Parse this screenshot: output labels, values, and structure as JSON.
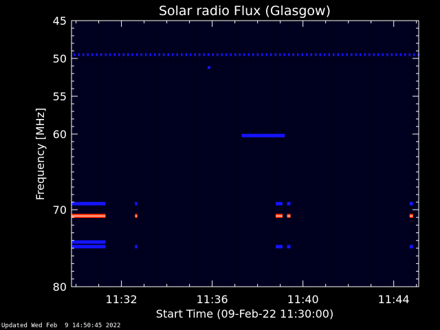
{
  "chart_data": {
    "type": "heatmap",
    "title": "Solar radio Flux (Glasgow)",
    "xlabel": "Start Time (09-Feb-22 11:30:00)",
    "ylabel": "Frequency [MHz]",
    "x_tick_labels": [
      "11:32",
      "11:36",
      "11:40",
      "11:44"
    ],
    "x_tick_minutes": [
      2,
      6,
      10,
      14
    ],
    "xlim_minutes": [
      -0.2,
      15.1
    ],
    "y_tick_labels": [
      "45",
      "50",
      "55",
      "60",
      "70",
      "80"
    ],
    "y_tick_values": [
      45,
      50,
      55,
      60,
      70,
      80
    ],
    "ylim": [
      45,
      80
    ],
    "y_scale": "nonlinear (log-like)",
    "colors": {
      "background": "#000000",
      "plot_background": "#00001c",
      "low": "#1414ff",
      "high": "#ff3000",
      "peak": "#ffd0c0",
      "axis": "#ffffff"
    },
    "features": [
      {
        "freq_mhz": 49.5,
        "x_start": -0.2,
        "x_end": 15.1,
        "intensity": "low",
        "pattern": "dashed"
      },
      {
        "freq_mhz": 51.2,
        "x_start": 5.8,
        "x_end": 5.9,
        "intensity": "low",
        "pattern": "dot"
      },
      {
        "freq_mhz": 60.2,
        "x_start": 7.3,
        "x_end": 9.2,
        "intensity": "low",
        "pattern": "solid"
      },
      {
        "freq_mhz": 69.2,
        "x_start": -0.2,
        "x_end": 1.3,
        "intensity": "low",
        "pattern": "solid"
      },
      {
        "freq_mhz": 69.2,
        "x_start": 2.6,
        "x_end": 2.7,
        "intensity": "low",
        "pattern": "solid"
      },
      {
        "freq_mhz": 69.2,
        "x_start": 8.8,
        "x_end": 9.1,
        "intensity": "low",
        "pattern": "solid"
      },
      {
        "freq_mhz": 69.2,
        "x_start": 9.3,
        "x_end": 9.45,
        "intensity": "low",
        "pattern": "solid"
      },
      {
        "freq_mhz": 69.2,
        "x_start": 14.7,
        "x_end": 14.85,
        "intensity": "low",
        "pattern": "solid"
      },
      {
        "freq_mhz": 70.8,
        "x_start": -0.2,
        "x_end": 1.3,
        "intensity": "high",
        "pattern": "solid"
      },
      {
        "freq_mhz": 70.8,
        "x_start": 2.6,
        "x_end": 2.7,
        "intensity": "high",
        "pattern": "solid"
      },
      {
        "freq_mhz": 70.8,
        "x_start": 8.8,
        "x_end": 9.1,
        "intensity": "high",
        "pattern": "solid"
      },
      {
        "freq_mhz": 70.8,
        "x_start": 9.3,
        "x_end": 9.45,
        "intensity": "high",
        "pattern": "solid"
      },
      {
        "freq_mhz": 70.8,
        "x_start": 14.7,
        "x_end": 14.85,
        "intensity": "high",
        "pattern": "solid"
      },
      {
        "freq_mhz": 74.2,
        "x_start": -0.2,
        "x_end": 1.3,
        "intensity": "low",
        "pattern": "solid"
      },
      {
        "freq_mhz": 74.8,
        "x_start": -0.2,
        "x_end": 1.3,
        "intensity": "low",
        "pattern": "solid"
      },
      {
        "freq_mhz": 74.8,
        "x_start": 2.6,
        "x_end": 2.7,
        "intensity": "low",
        "pattern": "solid"
      },
      {
        "freq_mhz": 74.8,
        "x_start": 8.8,
        "x_end": 9.1,
        "intensity": "low",
        "pattern": "solid"
      },
      {
        "freq_mhz": 74.8,
        "x_start": 9.3,
        "x_end": 9.45,
        "intensity": "low",
        "pattern": "solid"
      },
      {
        "freq_mhz": 74.8,
        "x_start": 14.7,
        "x_end": 14.85,
        "intensity": "low",
        "pattern": "solid"
      }
    ]
  },
  "footer": {
    "updated": "Updated Wed Feb  9 14:50:45 2022"
  }
}
